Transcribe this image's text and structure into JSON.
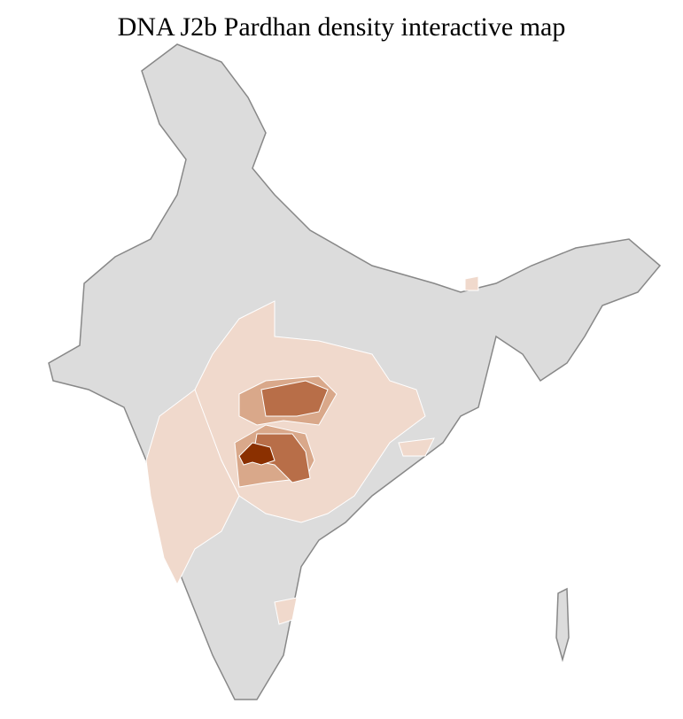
{
  "title": "DNA J2b Pardhan density interactive map",
  "colors": {
    "no_data": "#dcdcdc",
    "low": "#f0d9cc",
    "medium": "#d9a88a",
    "high": "#b86e48",
    "highest": "#8b3000",
    "border": "#888888"
  },
  "regions": [
    {
      "name": "central-india-low",
      "level": "low"
    },
    {
      "name": "western-india-low",
      "level": "low"
    },
    {
      "name": "eastern-coast-low",
      "level": "low"
    },
    {
      "name": "southern-low",
      "level": "low"
    },
    {
      "name": "northeast-low",
      "level": "low"
    },
    {
      "name": "vidarbha-medium",
      "level": "medium"
    },
    {
      "name": "mp-south-high",
      "level": "high"
    },
    {
      "name": "maharashtra-high",
      "level": "high"
    },
    {
      "name": "peak-district",
      "level": "highest"
    }
  ]
}
